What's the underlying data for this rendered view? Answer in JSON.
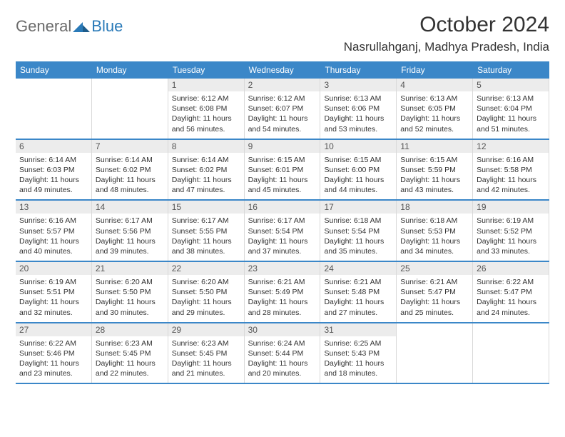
{
  "brand": {
    "general": "General",
    "blue": "Blue"
  },
  "title": "October 2024",
  "location": "Nasrullahganj, Madhya Pradesh, India",
  "colors": {
    "header_bg": "#3b87c8",
    "row_border": "#3b87c8",
    "daynum_bg": "#ececec",
    "logo_gray": "#6b6b6b",
    "logo_blue": "#2a7ab8"
  },
  "dayHeaders": [
    "Sunday",
    "Monday",
    "Tuesday",
    "Wednesday",
    "Thursday",
    "Friday",
    "Saturday"
  ],
  "weeks": [
    [
      null,
      null,
      {
        "n": "1",
        "sr": "Sunrise: 6:12 AM",
        "ss": "Sunset: 6:08 PM",
        "dl1": "Daylight: 11 hours",
        "dl2": "and 56 minutes."
      },
      {
        "n": "2",
        "sr": "Sunrise: 6:12 AM",
        "ss": "Sunset: 6:07 PM",
        "dl1": "Daylight: 11 hours",
        "dl2": "and 54 minutes."
      },
      {
        "n": "3",
        "sr": "Sunrise: 6:13 AM",
        "ss": "Sunset: 6:06 PM",
        "dl1": "Daylight: 11 hours",
        "dl2": "and 53 minutes."
      },
      {
        "n": "4",
        "sr": "Sunrise: 6:13 AM",
        "ss": "Sunset: 6:05 PM",
        "dl1": "Daylight: 11 hours",
        "dl2": "and 52 minutes."
      },
      {
        "n": "5",
        "sr": "Sunrise: 6:13 AM",
        "ss": "Sunset: 6:04 PM",
        "dl1": "Daylight: 11 hours",
        "dl2": "and 51 minutes."
      }
    ],
    [
      {
        "n": "6",
        "sr": "Sunrise: 6:14 AM",
        "ss": "Sunset: 6:03 PM",
        "dl1": "Daylight: 11 hours",
        "dl2": "and 49 minutes."
      },
      {
        "n": "7",
        "sr": "Sunrise: 6:14 AM",
        "ss": "Sunset: 6:02 PM",
        "dl1": "Daylight: 11 hours",
        "dl2": "and 48 minutes."
      },
      {
        "n": "8",
        "sr": "Sunrise: 6:14 AM",
        "ss": "Sunset: 6:02 PM",
        "dl1": "Daylight: 11 hours",
        "dl2": "and 47 minutes."
      },
      {
        "n": "9",
        "sr": "Sunrise: 6:15 AM",
        "ss": "Sunset: 6:01 PM",
        "dl1": "Daylight: 11 hours",
        "dl2": "and 45 minutes."
      },
      {
        "n": "10",
        "sr": "Sunrise: 6:15 AM",
        "ss": "Sunset: 6:00 PM",
        "dl1": "Daylight: 11 hours",
        "dl2": "and 44 minutes."
      },
      {
        "n": "11",
        "sr": "Sunrise: 6:15 AM",
        "ss": "Sunset: 5:59 PM",
        "dl1": "Daylight: 11 hours",
        "dl2": "and 43 minutes."
      },
      {
        "n": "12",
        "sr": "Sunrise: 6:16 AM",
        "ss": "Sunset: 5:58 PM",
        "dl1": "Daylight: 11 hours",
        "dl2": "and 42 minutes."
      }
    ],
    [
      {
        "n": "13",
        "sr": "Sunrise: 6:16 AM",
        "ss": "Sunset: 5:57 PM",
        "dl1": "Daylight: 11 hours",
        "dl2": "and 40 minutes."
      },
      {
        "n": "14",
        "sr": "Sunrise: 6:17 AM",
        "ss": "Sunset: 5:56 PM",
        "dl1": "Daylight: 11 hours",
        "dl2": "and 39 minutes."
      },
      {
        "n": "15",
        "sr": "Sunrise: 6:17 AM",
        "ss": "Sunset: 5:55 PM",
        "dl1": "Daylight: 11 hours",
        "dl2": "and 38 minutes."
      },
      {
        "n": "16",
        "sr": "Sunrise: 6:17 AM",
        "ss": "Sunset: 5:54 PM",
        "dl1": "Daylight: 11 hours",
        "dl2": "and 37 minutes."
      },
      {
        "n": "17",
        "sr": "Sunrise: 6:18 AM",
        "ss": "Sunset: 5:54 PM",
        "dl1": "Daylight: 11 hours",
        "dl2": "and 35 minutes."
      },
      {
        "n": "18",
        "sr": "Sunrise: 6:18 AM",
        "ss": "Sunset: 5:53 PM",
        "dl1": "Daylight: 11 hours",
        "dl2": "and 34 minutes."
      },
      {
        "n": "19",
        "sr": "Sunrise: 6:19 AM",
        "ss": "Sunset: 5:52 PM",
        "dl1": "Daylight: 11 hours",
        "dl2": "and 33 minutes."
      }
    ],
    [
      {
        "n": "20",
        "sr": "Sunrise: 6:19 AM",
        "ss": "Sunset: 5:51 PM",
        "dl1": "Daylight: 11 hours",
        "dl2": "and 32 minutes."
      },
      {
        "n": "21",
        "sr": "Sunrise: 6:20 AM",
        "ss": "Sunset: 5:50 PM",
        "dl1": "Daylight: 11 hours",
        "dl2": "and 30 minutes."
      },
      {
        "n": "22",
        "sr": "Sunrise: 6:20 AM",
        "ss": "Sunset: 5:50 PM",
        "dl1": "Daylight: 11 hours",
        "dl2": "and 29 minutes."
      },
      {
        "n": "23",
        "sr": "Sunrise: 6:21 AM",
        "ss": "Sunset: 5:49 PM",
        "dl1": "Daylight: 11 hours",
        "dl2": "and 28 minutes."
      },
      {
        "n": "24",
        "sr": "Sunrise: 6:21 AM",
        "ss": "Sunset: 5:48 PM",
        "dl1": "Daylight: 11 hours",
        "dl2": "and 27 minutes."
      },
      {
        "n": "25",
        "sr": "Sunrise: 6:21 AM",
        "ss": "Sunset: 5:47 PM",
        "dl1": "Daylight: 11 hours",
        "dl2": "and 25 minutes."
      },
      {
        "n": "26",
        "sr": "Sunrise: 6:22 AM",
        "ss": "Sunset: 5:47 PM",
        "dl1": "Daylight: 11 hours",
        "dl2": "and 24 minutes."
      }
    ],
    [
      {
        "n": "27",
        "sr": "Sunrise: 6:22 AM",
        "ss": "Sunset: 5:46 PM",
        "dl1": "Daylight: 11 hours",
        "dl2": "and 23 minutes."
      },
      {
        "n": "28",
        "sr": "Sunrise: 6:23 AM",
        "ss": "Sunset: 5:45 PM",
        "dl1": "Daylight: 11 hours",
        "dl2": "and 22 minutes."
      },
      {
        "n": "29",
        "sr": "Sunrise: 6:23 AM",
        "ss": "Sunset: 5:45 PM",
        "dl1": "Daylight: 11 hours",
        "dl2": "and 21 minutes."
      },
      {
        "n": "30",
        "sr": "Sunrise: 6:24 AM",
        "ss": "Sunset: 5:44 PM",
        "dl1": "Daylight: 11 hours",
        "dl2": "and 20 minutes."
      },
      {
        "n": "31",
        "sr": "Sunrise: 6:25 AM",
        "ss": "Sunset: 5:43 PM",
        "dl1": "Daylight: 11 hours",
        "dl2": "and 18 minutes."
      },
      null,
      null
    ]
  ]
}
